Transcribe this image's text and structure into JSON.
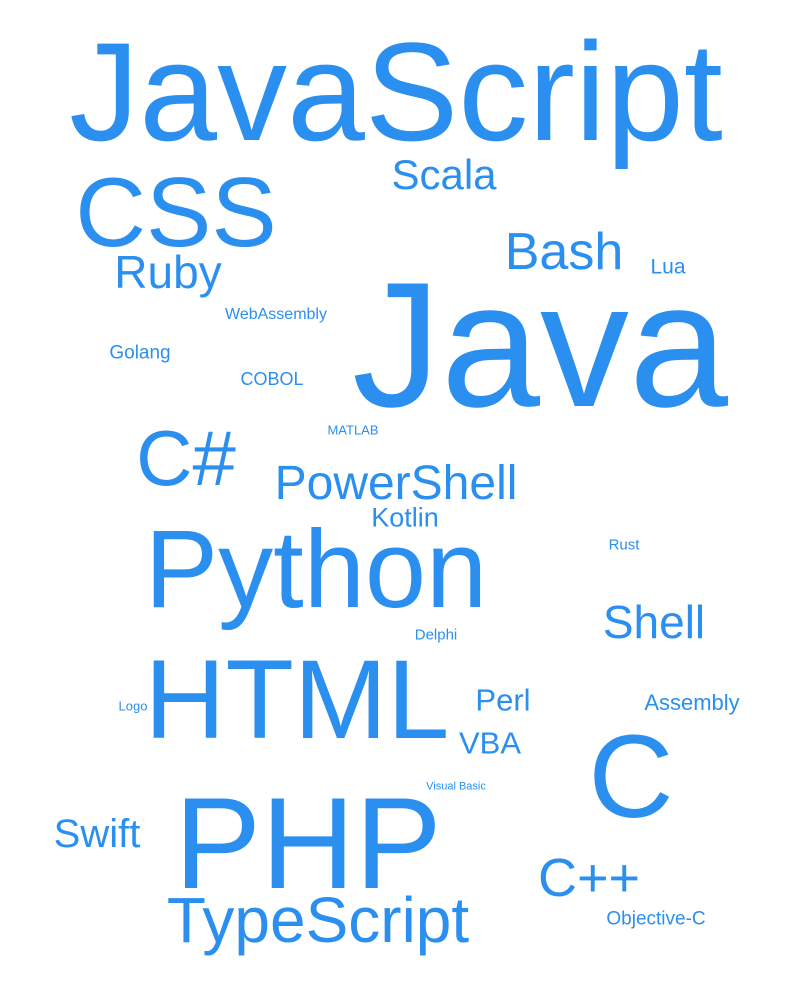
{
  "colors": {
    "word": "#2B8FF0",
    "background": "#FFFFFF"
  },
  "words": [
    {
      "id": "javascript",
      "text": "JavaScript"
    },
    {
      "id": "java",
      "text": "Java"
    },
    {
      "id": "python",
      "text": "Python"
    },
    {
      "id": "php",
      "text": "PHP"
    },
    {
      "id": "html",
      "text": "HTML"
    },
    {
      "id": "css",
      "text": "CSS"
    },
    {
      "id": "c",
      "text": "C"
    },
    {
      "id": "typescript",
      "text": "TypeScript"
    },
    {
      "id": "csharp",
      "text": "C#"
    },
    {
      "id": "powershell",
      "text": "PowerShell"
    },
    {
      "id": "cpp",
      "text": "C++"
    },
    {
      "id": "shell",
      "text": "Shell"
    },
    {
      "id": "scala",
      "text": "Scala"
    },
    {
      "id": "bash",
      "text": "Bash"
    },
    {
      "id": "ruby",
      "text": "Ruby"
    },
    {
      "id": "swift",
      "text": "Swift"
    },
    {
      "id": "perl",
      "text": "Perl"
    },
    {
      "id": "vba",
      "text": "VBA"
    },
    {
      "id": "kotlin",
      "text": "Kotlin"
    },
    {
      "id": "assembly",
      "text": "Assembly"
    },
    {
      "id": "objective-c",
      "text": "Objective-C"
    },
    {
      "id": "golang",
      "text": "Golang"
    },
    {
      "id": "cobol",
      "text": "COBOL"
    },
    {
      "id": "lua",
      "text": "Lua"
    },
    {
      "id": "webassembly",
      "text": "WebAssembly"
    },
    {
      "id": "delphi",
      "text": "Delphi"
    },
    {
      "id": "rust",
      "text": "Rust"
    },
    {
      "id": "matlab",
      "text": "MATLAB"
    },
    {
      "id": "logo",
      "text": "Logo"
    },
    {
      "id": "visual-basic",
      "text": "Visual Basic"
    }
  ]
}
